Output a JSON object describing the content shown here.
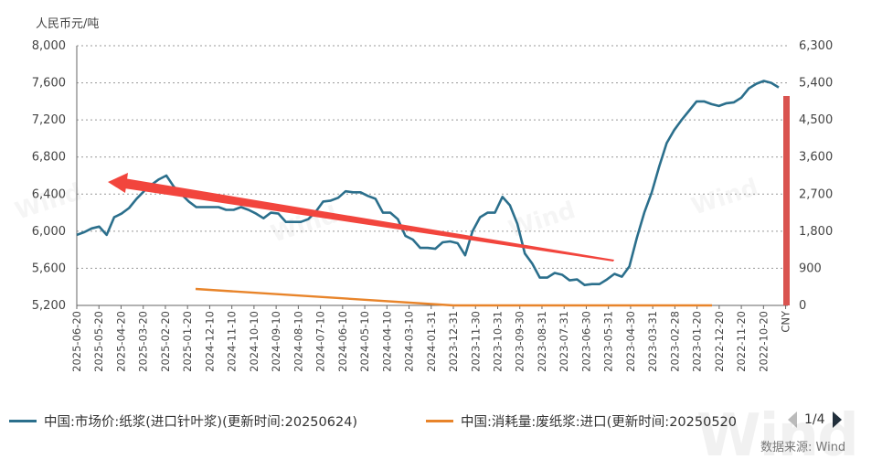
{
  "chart_data": {
    "type": "line",
    "y_unit_label": "人民币元/吨",
    "y_left": {
      "min": 5200,
      "max": 8000,
      "ticks": [
        "8,000",
        "7,600",
        "7,200",
        "6,800",
        "6,400",
        "6,000",
        "5,600",
        "5,200"
      ]
    },
    "y_right": {
      "min": 0,
      "max": 6300,
      "ticks": [
        "6,300",
        "5,400",
        "4,500",
        "3,600",
        "2,700",
        "1,800",
        "900",
        "0"
      ]
    },
    "x_labels": [
      "2025-06-20",
      "2025-05-20",
      "2025-04-20",
      "2025-03-20",
      "2025-02-20",
      "2025-01-20",
      "2024-12-10",
      "2024-11-10",
      "2024-10-10",
      "2024-09-10",
      "2024-08-10",
      "2024-07-10",
      "2024-06-10",
      "2024-05-10",
      "2024-04-10",
      "2024-03-10",
      "2024-01-31",
      "2023-12-31",
      "2023-11-30",
      "2023-10-31",
      "2023-09-30",
      "2023-08-31",
      "2023-07-31",
      "2023-06-30",
      "2023-05-31",
      "2023-04-30",
      "2023-03-31",
      "2023-02-28",
      "2023-01-20",
      "2022-12-20",
      "2022-11-20",
      "2022-10-20",
      "CNY"
    ],
    "grid": true,
    "legend_position": "bottom",
    "series": [
      {
        "name": "中国:市场价:纸浆(进口针叶浆)(更新时间:20250624)",
        "axis": "left",
        "color": "#2b6f8c",
        "values": [
          5960,
          5990,
          6030,
          6050,
          5960,
          6150,
          6190,
          6250,
          6350,
          6430,
          6500,
          6560,
          6600,
          6480,
          6400,
          6320,
          6260,
          6260,
          6260,
          6260,
          6230,
          6230,
          6260,
          6230,
          6190,
          6140,
          6200,
          6190,
          6100,
          6100,
          6100,
          6130,
          6210,
          6320,
          6330,
          6360,
          6430,
          6420,
          6420,
          6380,
          6350,
          6200,
          6200,
          6130,
          5950,
          5910,
          5820,
          5820,
          5810,
          5880,
          5890,
          5870,
          5740,
          6000,
          6150,
          6200,
          6200,
          6370,
          6280,
          6080,
          5760,
          5650,
          5500,
          5500,
          5550,
          5530,
          5470,
          5480,
          5420,
          5430,
          5430,
          5480,
          5540,
          5510,
          5620,
          5930,
          6200,
          6420,
          6700,
          6950,
          7090,
          7200,
          7300,
          7400,
          7400,
          7370,
          7350,
          7380,
          7390,
          7440,
          7540,
          7590,
          7620,
          7600,
          7550
        ]
      },
      {
        "name": "中国:消耗量:废纸浆:进口(更新时间:20250520",
        "axis": "right",
        "color": "#e8842a",
        "values": [
          400,
          0,
          0
        ]
      }
    ],
    "latest_value_bar": {
      "axis": "right",
      "value": 5080,
      "color": "#d9534f"
    }
  },
  "legend": {
    "item1": "中国:市场价:纸浆(进口针叶浆)(更新时间:20250624)",
    "item2": "中国:消耗量:废纸浆:进口(更新时间:20250520",
    "page": "1/4"
  },
  "source": "数据来源: Wind",
  "watermark": "Wind",
  "colors": {
    "series1": "#2b6f8c",
    "series2": "#e8842a",
    "annotation_arrow": "#f2453d",
    "bar": "#d9534f"
  }
}
